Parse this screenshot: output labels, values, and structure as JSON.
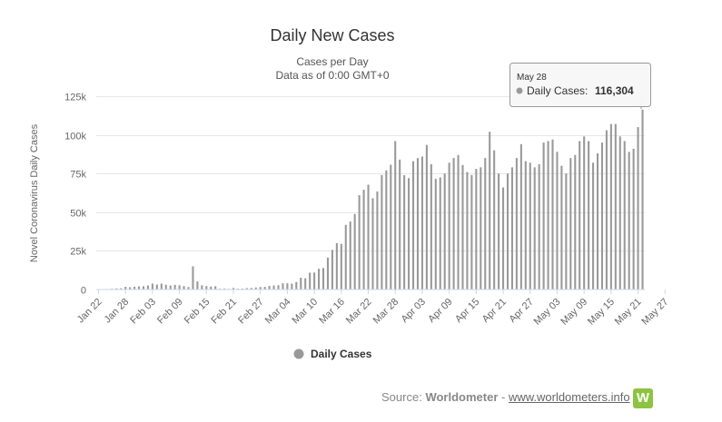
{
  "chart_data": {
    "type": "bar",
    "title": "Daily New Cases",
    "subtitle_line1": "Cases per Day",
    "subtitle_line2": "Data as of 0:00 GMT+0",
    "ylabel": "Novel Coronavirus Daily Cases",
    "xlabel": "",
    "ylim": [
      0,
      125000
    ],
    "y_ticks": [
      "0",
      "25k",
      "50k",
      "75k",
      "100k",
      "125k"
    ],
    "x_tick_labels": [
      "Jan 22",
      "Jan 28",
      "Feb 03",
      "Feb 09",
      "Feb 15",
      "Feb 21",
      "Feb 27",
      "Mar 04",
      "Mar 10",
      "Mar 16",
      "Mar 22",
      "Mar 28",
      "Apr 03",
      "Apr 09",
      "Apr 15",
      "Apr 21",
      "Apr 27",
      "May 03",
      "May 09",
      "May 15",
      "May 21",
      "May 27"
    ],
    "series": [
      {
        "name": "Daily Cases",
        "color": "#999999",
        "start_date": "Jan 22",
        "end_date": "May 28",
        "values": [
          0,
          100,
          300,
          500,
          700,
          800,
          1700,
          1500,
          1800,
          2000,
          2100,
          2600,
          3800,
          3200,
          3800,
          3100,
          2600,
          3000,
          2700,
          2200,
          1600,
          15000,
          5200,
          2700,
          2200,
          1900,
          2100,
          500,
          600,
          400,
          1000,
          500,
          600,
          900,
          1000,
          1300,
          1600,
          1700,
          2300,
          2600,
          2800,
          4000,
          4000,
          3800,
          4800,
          7600,
          7300,
          10900,
          11000,
          13400,
          13900,
          20600,
          25600,
          30000,
          29500,
          41800,
          44000,
          48800,
          61000,
          64500,
          67800,
          59000,
          63400,
          74000,
          77000,
          80700,
          96000,
          84000,
          73900,
          72000,
          83000,
          85000,
          86000,
          93500,
          81000,
          71500,
          72500,
          75000,
          82000,
          85000,
          87000,
          80500,
          76000,
          74000,
          78000,
          79000,
          85000,
          102000,
          90000,
          75000,
          66000,
          75000,
          79000,
          85000,
          94000,
          83000,
          82000,
          79000,
          81000,
          95000,
          96000,
          97000,
          89000,
          80000,
          75000,
          85000,
          87000,
          96000,
          99000,
          96000,
          82000,
          88000,
          95000,
          103000,
          107000,
          107000,
          99000,
          96000,
          89000,
          91000,
          105000,
          116304
        ]
      }
    ],
    "tooltip": {
      "date": "May 28",
      "label": "Daily Cases:",
      "value": "116,304"
    },
    "legend": {
      "label": "Daily Cases",
      "placement": "bottom-center"
    }
  },
  "source": {
    "prefix": "Source:",
    "name": "Worldometer",
    "separator": " - ",
    "link": "www.worldometers.info",
    "logo_letter": "W"
  }
}
